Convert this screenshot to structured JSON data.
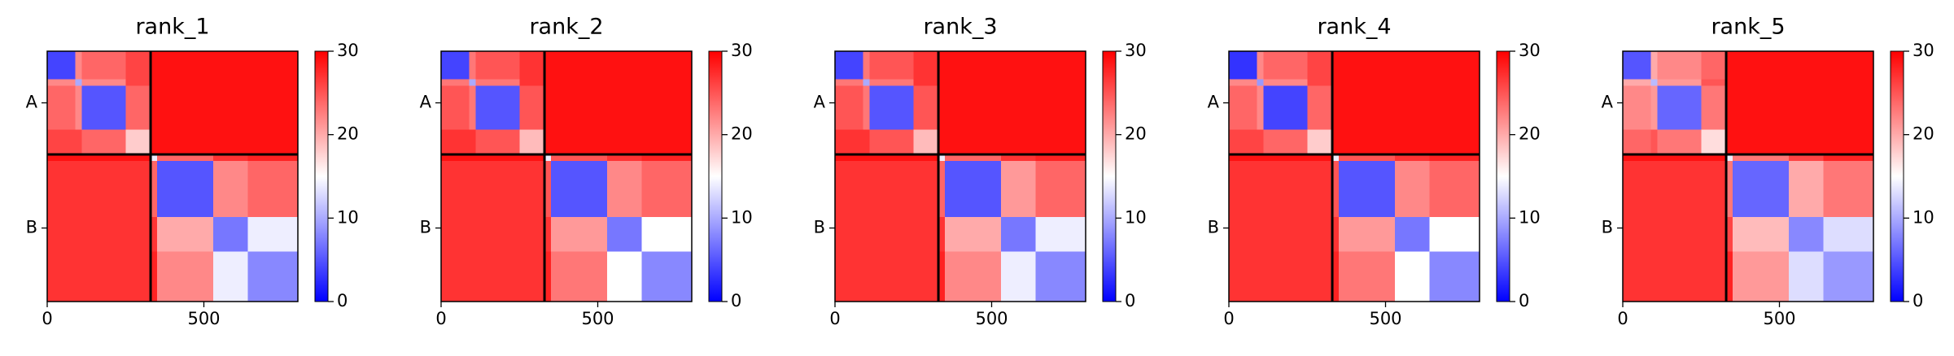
{
  "chart_data": [
    {
      "type": "heatmap",
      "title": "rank_1",
      "colormap": "bwr",
      "bins": [
        0,
        90,
        110,
        250,
        330,
        350,
        530,
        640,
        800
      ],
      "z": [
        [
          4,
          22,
          24,
          26,
          29,
          29,
          29,
          29
        ],
        [
          22,
          10,
          22,
          26,
          29,
          29,
          29,
          29
        ],
        [
          24,
          22,
          5,
          24,
          29,
          29,
          29,
          29
        ],
        [
          26,
          26,
          24,
          18,
          29,
          29,
          29,
          29
        ],
        [
          29,
          29,
          29,
          29,
          14,
          24,
          27,
          28
        ],
        [
          27,
          27,
          27,
          27,
          24,
          5,
          22,
          24
        ],
        [
          27,
          27,
          27,
          27,
          27,
          20,
          7,
          14
        ],
        [
          27,
          27,
          27,
          27,
          28,
          22,
          14,
          8
        ]
      ],
      "xlim": [
        0,
        800
      ],
      "ylim": [
        800,
        0
      ],
      "xticks": [
        0,
        500
      ],
      "yticks": [
        {
          "value": 165,
          "label": "A"
        },
        {
          "value": 565,
          "label": "B"
        }
      ],
      "lines": [
        330
      ],
      "clim": [
        0,
        30
      ],
      "cticks": [
        0,
        10,
        20,
        30
      ]
    },
    {
      "type": "heatmap",
      "title": "rank_2",
      "colormap": "bwr",
      "bins": [
        0,
        90,
        110,
        250,
        330,
        350,
        530,
        640,
        800
      ],
      "z": [
        [
          4,
          23,
          25,
          27,
          29,
          29,
          29,
          29
        ],
        [
          23,
          10,
          23,
          27,
          29,
          29,
          29,
          29
        ],
        [
          25,
          23,
          5,
          25,
          29,
          29,
          29,
          29
        ],
        [
          27,
          27,
          25,
          19,
          29,
          29,
          29,
          29
        ],
        [
          29,
          29,
          29,
          29,
          14,
          25,
          27,
          28
        ],
        [
          27,
          27,
          27,
          27,
          25,
          5,
          22,
          24
        ],
        [
          27,
          27,
          27,
          27,
          27,
          21,
          7,
          15
        ],
        [
          27,
          27,
          27,
          27,
          28,
          23,
          15,
          8
        ]
      ],
      "xlim": [
        0,
        800
      ],
      "ylim": [
        800,
        0
      ],
      "xticks": [
        0,
        500
      ],
      "yticks": [
        {
          "value": 165,
          "label": "A"
        },
        {
          "value": 565,
          "label": "B"
        }
      ],
      "lines": [
        330
      ],
      "clim": [
        0,
        30
      ],
      "cticks": [
        0,
        10,
        20,
        30
      ]
    },
    {
      "type": "heatmap",
      "title": "rank_3",
      "colormap": "bwr",
      "bins": [
        0,
        90,
        110,
        250,
        330,
        350,
        530,
        640,
        800
      ],
      "z": [
        [
          4,
          23,
          25,
          27,
          29,
          29,
          29,
          29
        ],
        [
          23,
          10,
          23,
          27,
          29,
          29,
          29,
          29
        ],
        [
          25,
          23,
          5,
          25,
          29,
          29,
          29,
          29
        ],
        [
          27,
          27,
          25,
          19,
          29,
          29,
          29,
          29
        ],
        [
          29,
          29,
          29,
          29,
          14,
          24,
          27,
          28
        ],
        [
          27,
          27,
          27,
          27,
          24,
          5,
          21,
          24
        ],
        [
          27,
          27,
          27,
          27,
          27,
          20,
          7,
          14
        ],
        [
          27,
          27,
          27,
          27,
          28,
          22,
          14,
          8
        ]
      ],
      "xlim": [
        0,
        800
      ],
      "ylim": [
        800,
        0
      ],
      "xticks": [
        0,
        500
      ],
      "yticks": [
        {
          "value": 165,
          "label": "A"
        },
        {
          "value": 565,
          "label": "B"
        }
      ],
      "lines": [
        330
      ],
      "clim": [
        0,
        30
      ],
      "cticks": [
        0,
        10,
        20,
        30
      ]
    },
    {
      "type": "heatmap",
      "title": "rank_4",
      "colormap": "bwr",
      "bins": [
        0,
        90,
        110,
        250,
        330,
        350,
        530,
        640,
        800
      ],
      "z": [
        [
          3,
          22,
          24,
          26,
          29,
          29,
          29,
          29
        ],
        [
          22,
          9,
          22,
          26,
          29,
          29,
          29,
          29
        ],
        [
          24,
          22,
          4,
          24,
          29,
          29,
          29,
          29
        ],
        [
          26,
          26,
          24,
          18,
          29,
          29,
          29,
          29
        ],
        [
          29,
          29,
          29,
          29,
          14,
          25,
          27,
          28
        ],
        [
          27,
          27,
          27,
          27,
          25,
          5,
          22,
          24
        ],
        [
          27,
          27,
          27,
          27,
          27,
          21,
          7,
          15
        ],
        [
          27,
          27,
          27,
          27,
          28,
          23,
          15,
          8
        ]
      ],
      "xlim": [
        0,
        800
      ],
      "ylim": [
        800,
        0
      ],
      "xticks": [
        0,
        500
      ],
      "yticks": [
        {
          "value": 165,
          "label": "A"
        },
        {
          "value": 565,
          "label": "B"
        }
      ],
      "lines": [
        330
      ],
      "clim": [
        0,
        30
      ],
      "cticks": [
        0,
        10,
        20,
        30
      ]
    },
    {
      "type": "heatmap",
      "title": "rank_5",
      "colormap": "bwr",
      "bins": [
        0,
        90,
        110,
        250,
        330,
        350,
        530,
        640,
        800
      ],
      "z": [
        [
          5,
          20,
          22,
          24,
          29,
          29,
          29,
          29
        ],
        [
          20,
          11,
          21,
          25,
          29,
          29,
          29,
          29
        ],
        [
          22,
          21,
          6,
          23,
          29,
          29,
          29,
          29
        ],
        [
          24,
          25,
          23,
          17,
          29,
          29,
          29,
          29
        ],
        [
          29,
          29,
          29,
          29,
          14,
          23,
          26,
          28
        ],
        [
          27,
          27,
          27,
          27,
          23,
          6,
          20,
          23
        ],
        [
          27,
          27,
          27,
          27,
          26,
          19,
          8,
          13
        ],
        [
          27,
          27,
          27,
          27,
          28,
          21,
          13,
          9
        ]
      ],
      "xlim": [
        0,
        800
      ],
      "ylim": [
        800,
        0
      ],
      "xticks": [
        0,
        500
      ],
      "yticks": [
        {
          "value": 165,
          "label": "A"
        },
        {
          "value": 565,
          "label": "B"
        }
      ],
      "lines": [
        330
      ],
      "clim": [
        0,
        30
      ],
      "cticks": [
        0,
        10,
        20,
        30
      ]
    }
  ]
}
